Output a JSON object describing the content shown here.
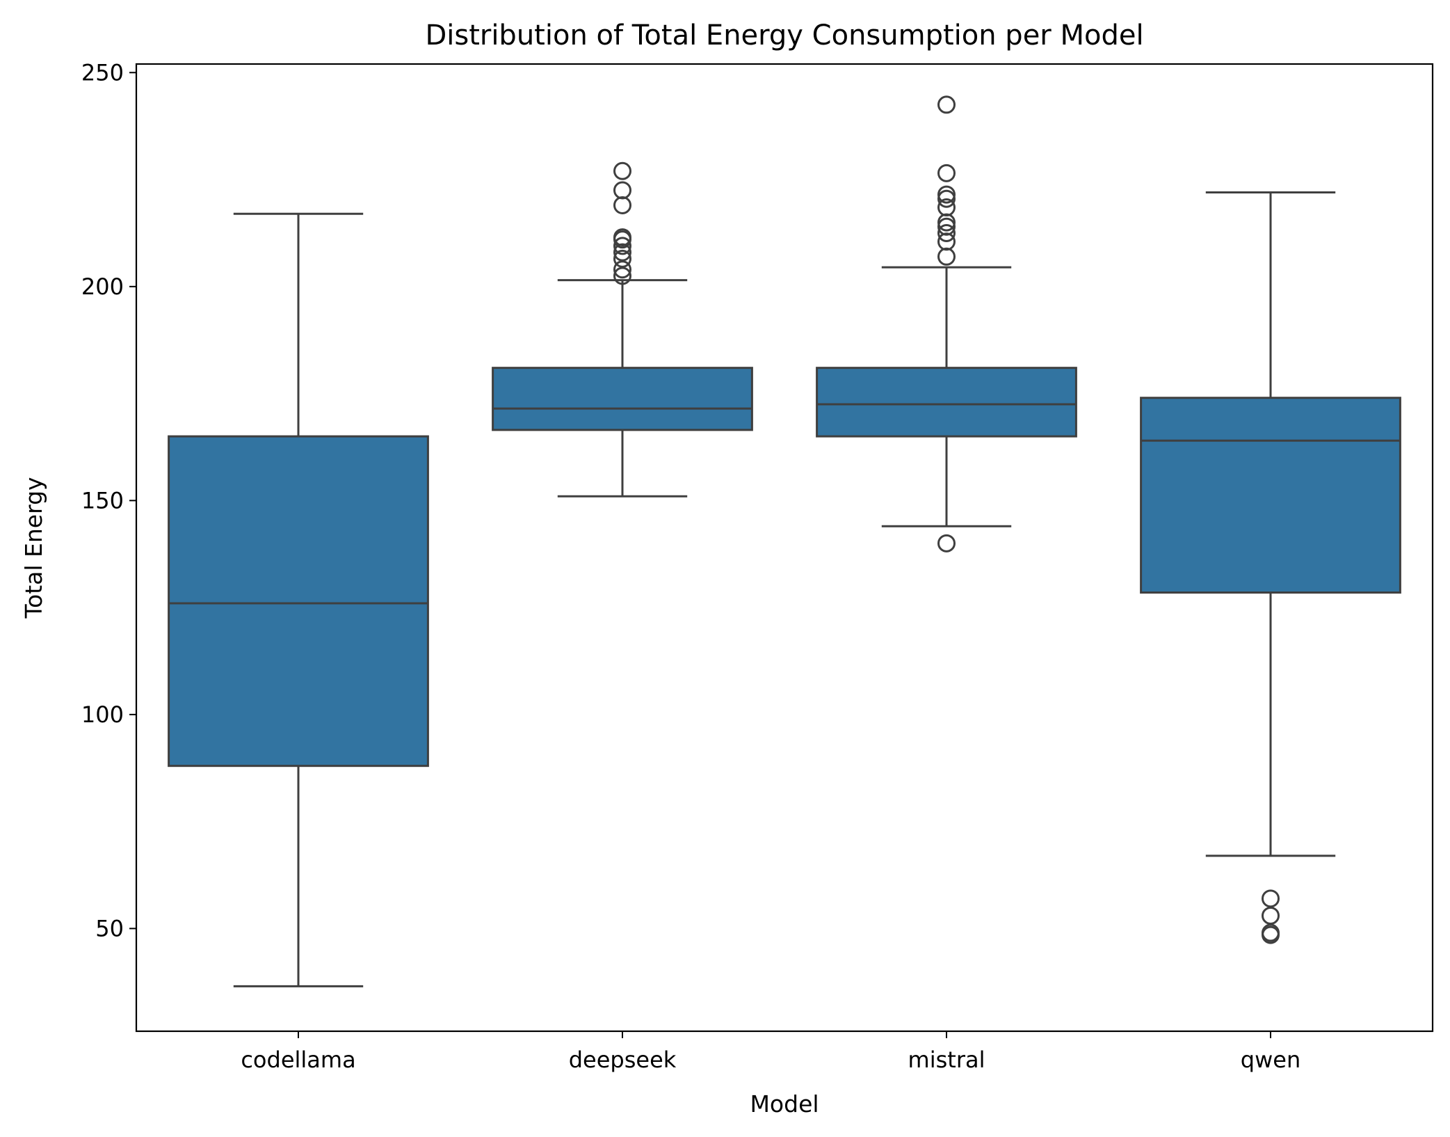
{
  "chart_data": {
    "type": "boxplot",
    "title": "Distribution of Total Energy Consumption per Model",
    "xlabel": "Model",
    "ylabel": "Total Energy",
    "ylim": [
      26,
      252
    ],
    "yticks": [
      50,
      100,
      150,
      200,
      250
    ],
    "grid": false,
    "legend": "none",
    "box_color": "#3274a1",
    "line_color": "#3f3f3f",
    "categories": [
      "codellama",
      "deepseek",
      "mistral",
      "qwen"
    ],
    "boxes": [
      {
        "name": "codellama",
        "whisker_low": 36.5,
        "q1": 88,
        "median": 126,
        "q3": 165,
        "whisker_high": 217,
        "outliers": []
      },
      {
        "name": "deepseek",
        "whisker_low": 151,
        "q1": 166.5,
        "median": 171.5,
        "q3": 181,
        "whisker_high": 201.5,
        "outliers": [
          202.5,
          204,
          206.5,
          208,
          209.5,
          211,
          211.5,
          219,
          222.5,
          227
        ]
      },
      {
        "name": "mistral",
        "whisker_low": 144,
        "q1": 165,
        "median": 172.5,
        "q3": 181,
        "whisker_high": 204.5,
        "outliers": [
          140,
          207,
          210.5,
          212.5,
          214,
          215,
          218.5,
          220.5,
          221.5,
          226.5,
          242.5
        ]
      },
      {
        "name": "qwen",
        "whisker_low": 67,
        "q1": 128.5,
        "median": 164,
        "q3": 174,
        "whisker_high": 222,
        "outliers": [
          48.5,
          49,
          53,
          57
        ]
      }
    ]
  }
}
